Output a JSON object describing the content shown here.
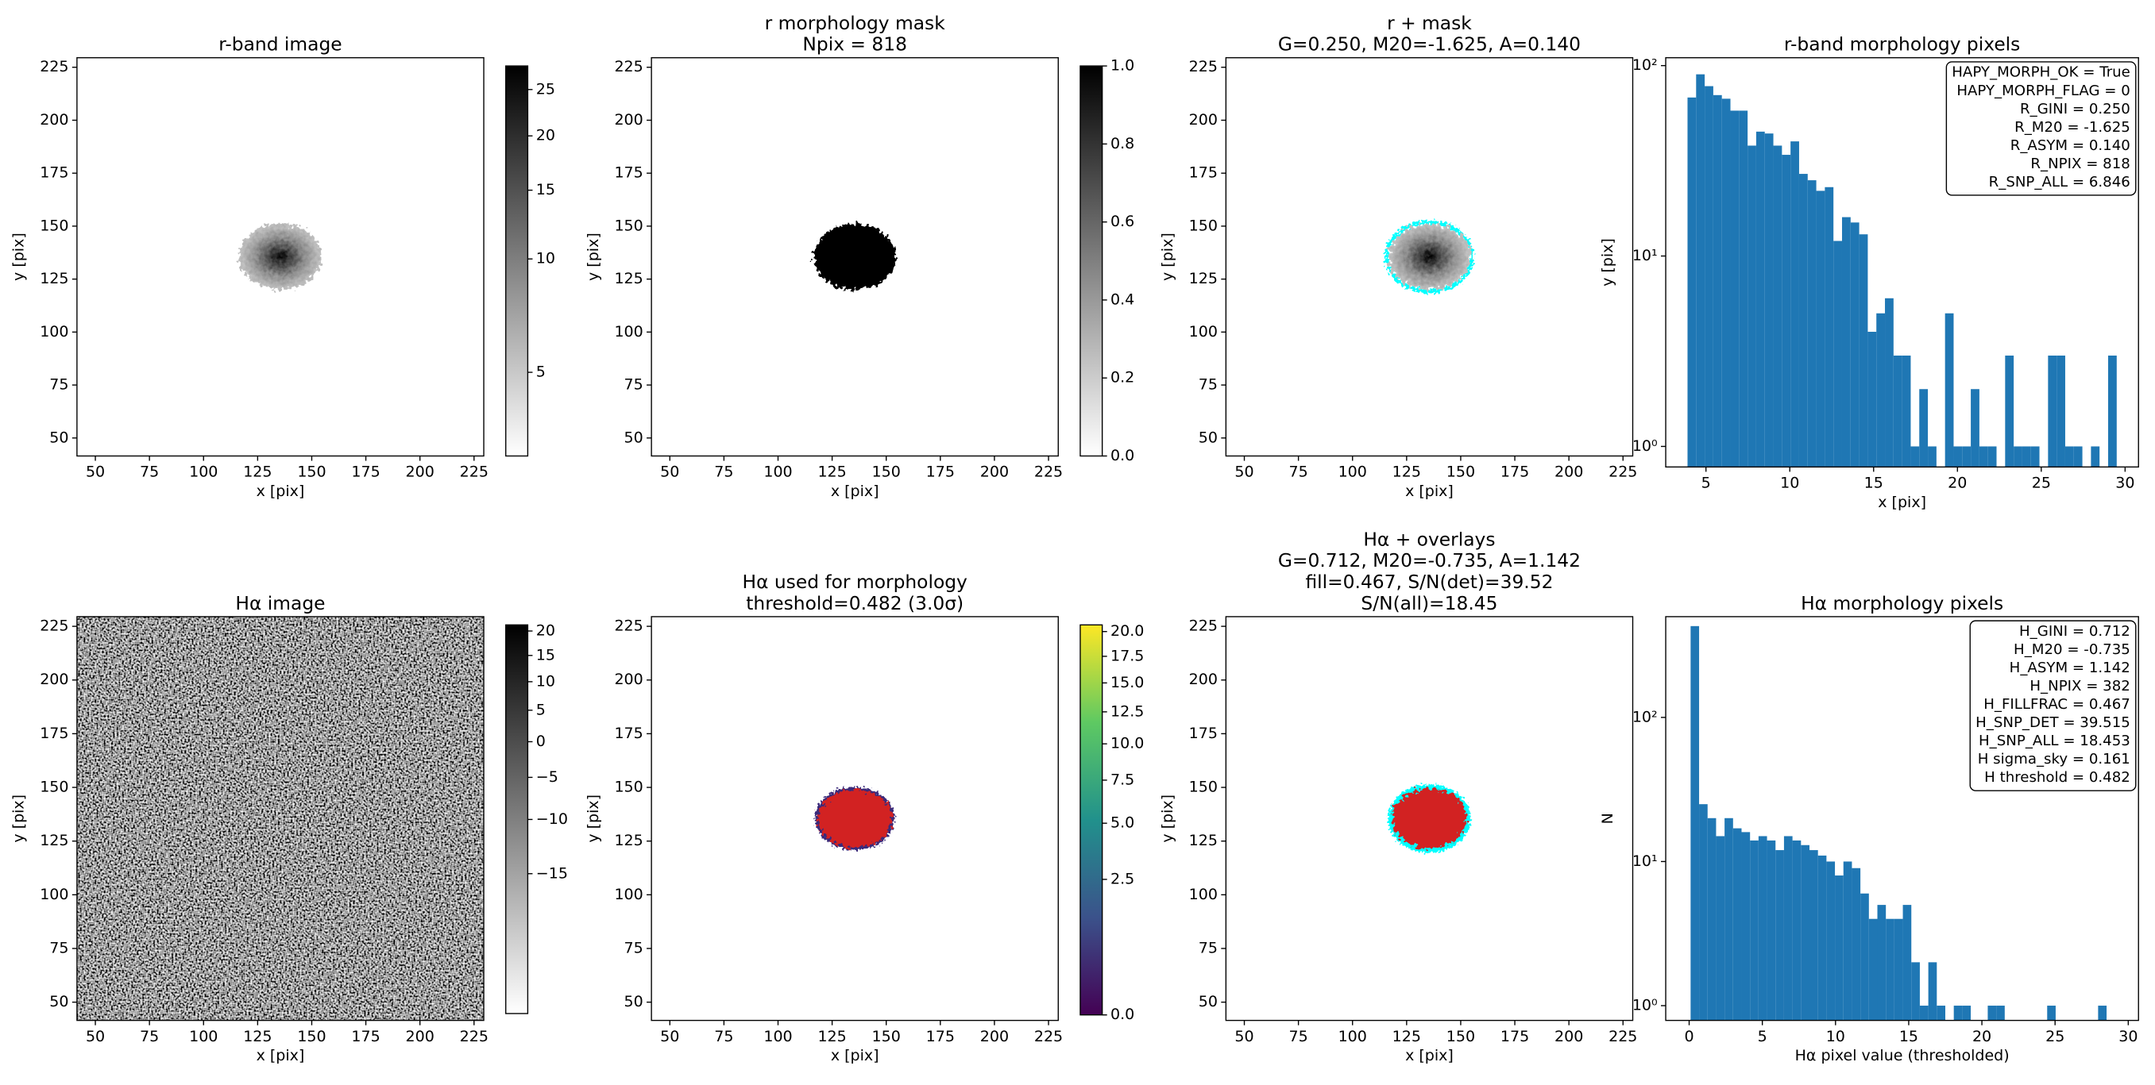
{
  "chart_data": [
    {
      "type": "image",
      "title": "r-band image",
      "xlabel": "x [pix]",
      "ylabel": "y [pix]",
      "xlim": [
        41.5,
        229.5
      ],
      "ylim": [
        41.5,
        229.5
      ],
      "xticks": [
        50,
        75,
        100,
        125,
        150,
        175,
        200,
        225
      ],
      "yticks": [
        50,
        75,
        100,
        125,
        150,
        175,
        200,
        225
      ],
      "cmap": "gray_r",
      "colorbar": {
        "cmap": "gray_r",
        "scale": "sqrt",
        "lim": [
          3.9,
          27.8
        ],
        "ticks": [
          5,
          10,
          15,
          20,
          25
        ]
      }
    },
    {
      "type": "image",
      "title": [
        "r morphology mask",
        "Npix = 818"
      ],
      "xlabel": "x [pix]",
      "ylabel": "y [pix]",
      "xlim": [
        41.5,
        229.5
      ],
      "ylim": [
        41.5,
        229.5
      ],
      "xticks": [
        50,
        75,
        100,
        125,
        150,
        175,
        200,
        225
      ],
      "yticks": [
        50,
        75,
        100,
        125,
        150,
        175,
        200,
        225
      ],
      "cmap": "gray_r",
      "colorbar": {
        "cmap": "gray_r",
        "scale": "linear",
        "lim": [
          0,
          1
        ],
        "ticks": [
          {
            "value": 0,
            "label": "0.0"
          },
          {
            "value": 0.2,
            "label": "0.2"
          },
          {
            "value": 0.4,
            "label": "0.4"
          },
          {
            "value": 0.6,
            "label": "0.6"
          },
          {
            "value": 0.8,
            "label": "0.8"
          },
          {
            "value": 1,
            "label": "1.0"
          }
        ]
      }
    },
    {
      "type": "image",
      "title": [
        "r + mask",
        "G=0.250, M20=-1.625, A=0.140"
      ],
      "xlabel": "x [pix]",
      "ylabel": "y [pix]",
      "xlim": [
        41.5,
        229.5
      ],
      "ylim": [
        41.5,
        229.5
      ],
      "xticks": [
        50,
        75,
        100,
        125,
        150,
        175,
        200,
        225
      ],
      "yticks": [
        50,
        75,
        100,
        125,
        150,
        175,
        200,
        225
      ],
      "cmap": "gray_r",
      "overlay_color": "#00ffff"
    },
    {
      "type": "histogram",
      "title": "r-band morphology pixels",
      "xlabel": "x [pix]",
      "ylabel": "y [pix]",
      "color": "#1f77b4",
      "yscale": "log",
      "xlim": [
        2.6,
        30.8
      ],
      "ylim": [
        0.78,
        110
      ],
      "xticks": [
        5,
        10,
        15,
        20,
        25,
        30
      ],
      "yticks": [
        {
          "value": 1,
          "label": "10⁰"
        },
        {
          "value": 10,
          "label": "10¹"
        },
        {
          "value": 100,
          "label": "10²"
        }
      ],
      "bins": [
        3.9,
        4.412,
        4.924,
        5.436,
        5.948,
        6.46,
        6.972,
        7.484,
        7.996,
        8.508,
        9.02,
        9.532,
        10.044,
        10.556,
        11.068,
        11.58,
        12.092,
        12.604,
        13.116,
        13.628,
        14.14,
        14.652,
        15.164,
        15.676,
        16.188,
        16.7,
        17.212,
        17.724,
        18.236,
        18.748,
        19.26,
        19.772,
        20.284,
        20.796,
        21.308,
        21.82,
        22.332,
        22.844,
        23.356,
        23.868,
        24.38,
        24.892,
        25.404,
        25.916,
        26.428,
        26.94,
        27.452,
        27.964,
        28.476,
        28.988,
        29.5
      ],
      "values": [
        68,
        90,
        78,
        70,
        67,
        58,
        58,
        38,
        45,
        44,
        38,
        34,
        40,
        27,
        25,
        22,
        23,
        12,
        16,
        15,
        13,
        4,
        5,
        6,
        3,
        3,
        1,
        2,
        1,
        0,
        5,
        1,
        1,
        2,
        1,
        1,
        0,
        3,
        1,
        1,
        1,
        0,
        3,
        3,
        1,
        1,
        0,
        1,
        0,
        3
      ],
      "annotation": [
        "HAPY_MORPH_OK = True",
        "HAPY_MORPH_FLAG = 0",
        "R_GINI = 0.250",
        "R_M20 = -1.625",
        "R_ASYM = 0.140",
        "R_NPIX = 818",
        "R_SNP_ALL = 6.846"
      ]
    },
    {
      "type": "image",
      "title": "Hα image",
      "xlabel": "x [pix]",
      "ylabel": "y [pix]",
      "xlim": [
        41.5,
        229.5
      ],
      "ylim": [
        41.5,
        229.5
      ],
      "xticks": [
        50,
        75,
        100,
        125,
        150,
        175,
        200,
        225
      ],
      "yticks": [
        50,
        75,
        100,
        125,
        150,
        175,
        200,
        225
      ],
      "cmap": "gray_r",
      "colorbar": {
        "cmap": "gray_r",
        "scale": "sqrt",
        "lim": [
          -20.4,
          21.3
        ],
        "ticks": [
          {
            "value": -15,
            "label": "−15"
          },
          {
            "value": -10,
            "label": "−10"
          },
          {
            "value": -5,
            "label": "−5"
          },
          0,
          5,
          10,
          15,
          20
        ]
      }
    },
    {
      "type": "image",
      "title": [
        "Hα used for morphology",
        "threshold=0.482 (3.0σ)"
      ],
      "xlabel": "x [pix]",
      "ylabel": "y [pix]",
      "xlim": [
        41.5,
        229.5
      ],
      "ylim": [
        41.5,
        229.5
      ],
      "xticks": [
        50,
        75,
        100,
        125,
        150,
        175,
        200,
        225
      ],
      "yticks": [
        50,
        75,
        100,
        125,
        150,
        175,
        200,
        225
      ],
      "cmap": "viridis",
      "colorbar": {
        "cmap": "viridis",
        "scale": "sqrt",
        "lim": [
          0,
          20.7
        ],
        "ticks": [
          {
            "value": 0,
            "label": "0.0"
          },
          {
            "value": 2.5,
            "label": "2.5"
          },
          {
            "value": 5,
            "label": "5.0"
          },
          {
            "value": 7.5,
            "label": "7.5"
          },
          {
            "value": 10,
            "label": "10.0"
          },
          {
            "value": 12.5,
            "label": "12.5"
          },
          {
            "value": 15,
            "label": "15.0"
          },
          {
            "value": 17.5,
            "label": "17.5"
          },
          {
            "value": 20,
            "label": "20.0"
          }
        ]
      }
    },
    {
      "type": "image",
      "title": [
        "Hα + overlays",
        "G=0.712, M20=-0.735, A=1.142",
        "fill=0.467, S/N(det)=39.52",
        "S/N(all)=18.45"
      ],
      "xlabel": "x [pix]",
      "ylabel": "y [pix]",
      "xlim": [
        41.5,
        229.5
      ],
      "ylim": [
        41.5,
        229.5
      ],
      "xticks": [
        50,
        75,
        100,
        125,
        150,
        175,
        200,
        225
      ],
      "yticks": [
        50,
        75,
        100,
        125,
        150,
        175,
        200,
        225
      ],
      "cmap": "gray_r",
      "overlay_color": "#00ffff"
    },
    {
      "type": "histogram",
      "title": "Hα morphology pixels",
      "xlabel": "Hα pixel value (thresholded)",
      "ylabel": "N",
      "color": "#1f77b4",
      "yscale": "log",
      "xlim": [
        -1.6,
        30.7
      ],
      "ylim": [
        0.79,
        500
      ],
      "xticks": [
        0,
        5,
        10,
        15,
        20,
        25,
        30
      ],
      "yticks": [
        {
          "value": 1,
          "label": "10⁰"
        },
        {
          "value": 10,
          "label": "10¹"
        },
        {
          "value": 100,
          "label": "10²"
        }
      ],
      "bins": [
        0.1,
        0.68,
        1.26,
        1.84,
        2.42,
        3.0,
        3.58,
        4.16,
        4.74,
        5.32,
        5.9,
        6.48,
        7.06,
        7.64,
        8.22,
        8.8,
        9.38,
        9.96,
        10.54,
        11.12,
        11.7,
        12.28,
        12.86,
        13.44,
        14.02,
        14.6,
        15.18,
        15.76,
        16.34,
        16.92,
        17.5,
        18.08,
        18.66,
        19.24,
        19.82,
        20.4,
        20.98,
        21.56,
        22.14,
        22.72,
        23.3,
        23.88,
        24.46,
        25.04,
        25.62,
        26.2,
        26.78,
        27.36,
        27.94,
        28.52,
        29.1
      ],
      "values": [
        430,
        25,
        20,
        15,
        20,
        17,
        16,
        14,
        15,
        14,
        12,
        15,
        14,
        13,
        12,
        11,
        10,
        8,
        10,
        9,
        6,
        4,
        5,
        4,
        4,
        5,
        2,
        1,
        2,
        1,
        0,
        1,
        1,
        0,
        0,
        1,
        1,
        0,
        0,
        0,
        0,
        0,
        1,
        0,
        0,
        0,
        0,
        0,
        1,
        0
      ],
      "annotation": [
        "H_GINI = 0.712",
        "H_M20 = -0.735",
        "H_ASYM = 1.142",
        "H_NPIX = 382",
        "H_FILLFRAC = 0.467",
        "H_SNP_DET = 39.515",
        "H_SNP_ALL = 18.453",
        "H sigma_sky = 0.161",
        "H threshold = 0.482"
      ]
    }
  ]
}
